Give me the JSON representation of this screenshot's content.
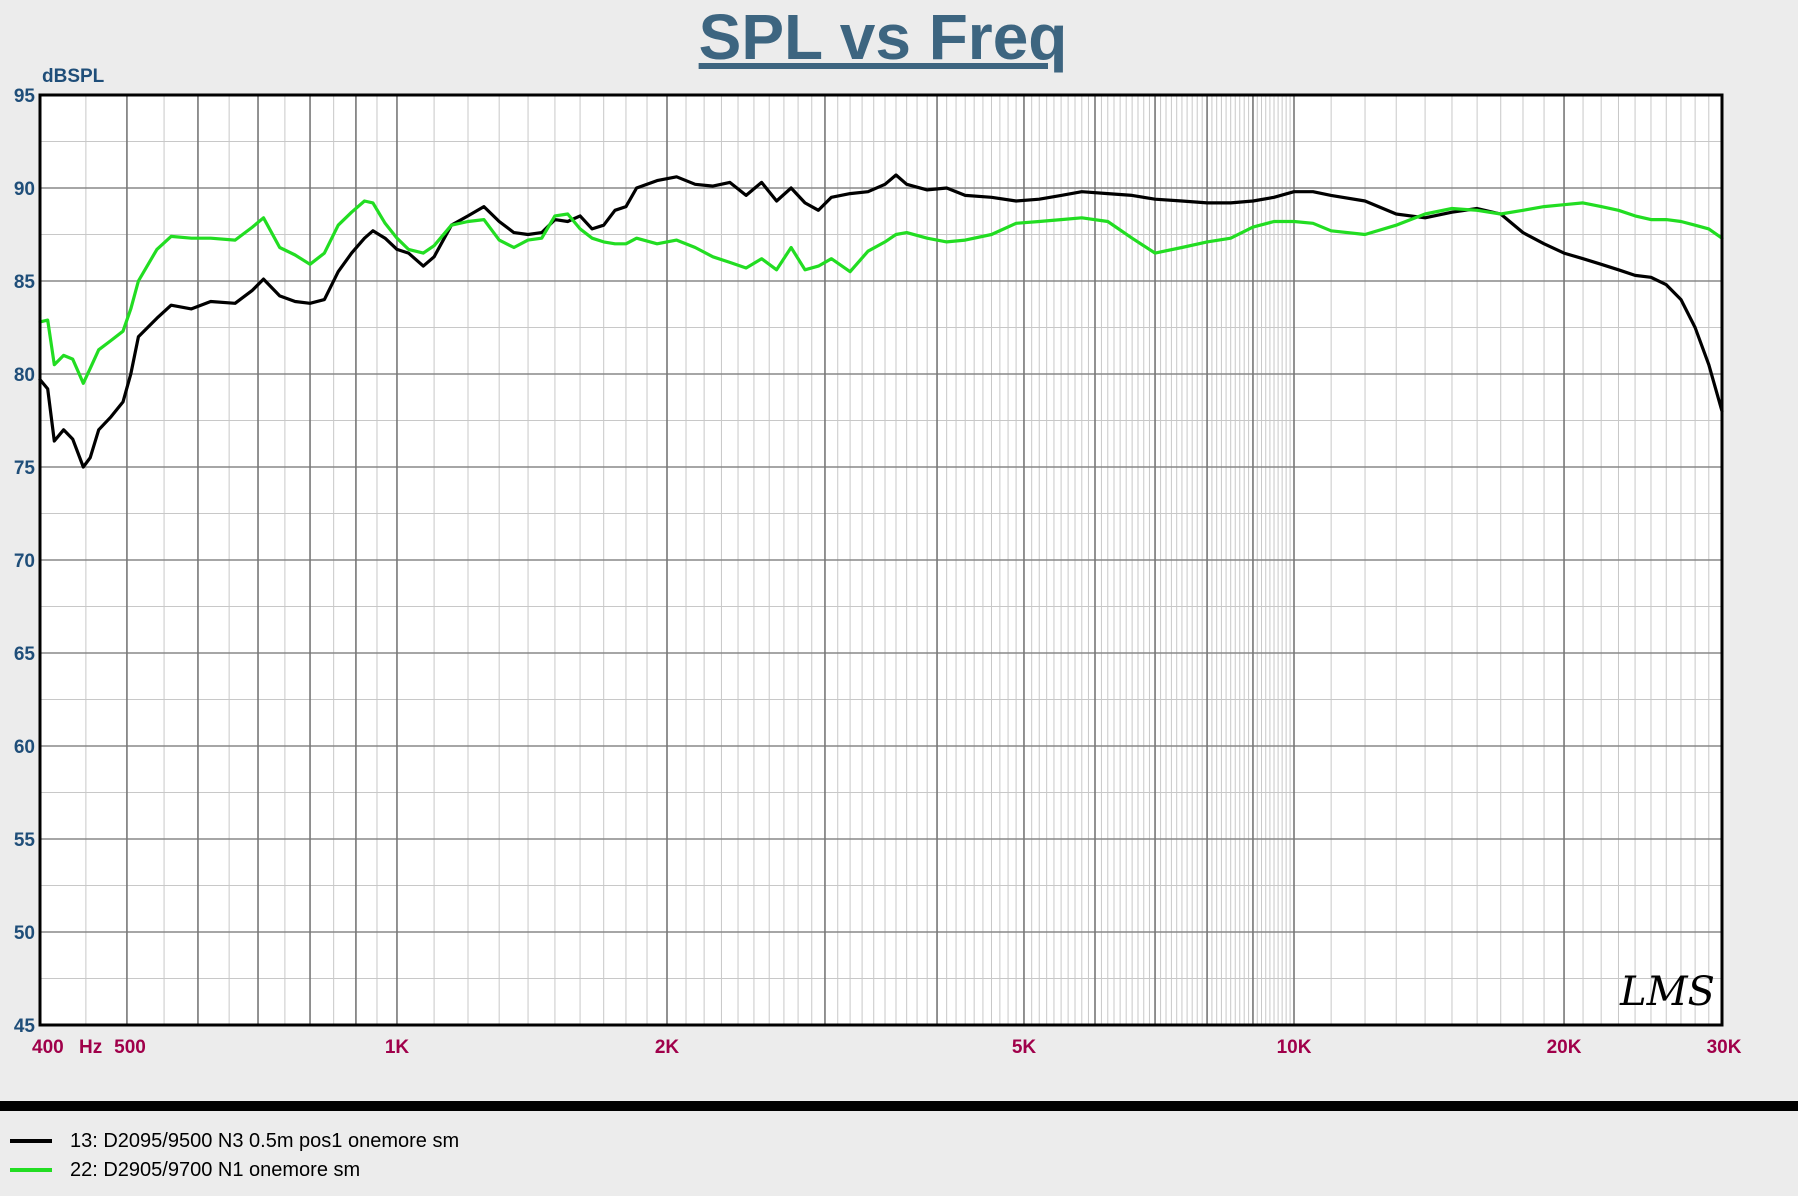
{
  "chart_data": {
    "type": "line",
    "title": "SPL vs Freq",
    "ylabel": "dBSPL",
    "xunit": "Hz",
    "xscale": "log",
    "xlim": [
      400,
      30000
    ],
    "ylim": [
      45,
      95
    ],
    "grid": true,
    "yticks": [
      95,
      90,
      85,
      80,
      75,
      70,
      65,
      60,
      55,
      50,
      45
    ],
    "xtick_labels": [
      {
        "f": 400,
        "label": "400"
      },
      {
        "f": 500,
        "label": "500"
      },
      {
        "f": 1000,
        "label": "1K"
      },
      {
        "f": 2000,
        "label": "2K"
      },
      {
        "f": 5000,
        "label": "5K"
      },
      {
        "f": 10000,
        "label": "10K"
      },
      {
        "f": 20000,
        "label": "20K"
      },
      {
        "f": 30000,
        "label": "30K"
      }
    ],
    "hz_label": "Hz",
    "watermark": "LMS",
    "legend_position": "bottom",
    "series": [
      {
        "name": "13: D2095/9500 N3 0.5m pos1 onemore sm",
        "color": "#000000",
        "points": [
          [
            400,
            79.7
          ],
          [
            408,
            79.2
          ],
          [
            415,
            76.4
          ],
          [
            425,
            77.0
          ],
          [
            435,
            76.5
          ],
          [
            447,
            75.0
          ],
          [
            455,
            75.5
          ],
          [
            465,
            77.0
          ],
          [
            480,
            77.7
          ],
          [
            495,
            78.5
          ],
          [
            505,
            80.0
          ],
          [
            515,
            82.0
          ],
          [
            540,
            83.0
          ],
          [
            560,
            83.7
          ],
          [
            590,
            83.5
          ],
          [
            620,
            83.9
          ],
          [
            660,
            83.8
          ],
          [
            690,
            84.5
          ],
          [
            710,
            85.1
          ],
          [
            740,
            84.2
          ],
          [
            770,
            83.9
          ],
          [
            800,
            83.8
          ],
          [
            830,
            84.0
          ],
          [
            860,
            85.5
          ],
          [
            890,
            86.5
          ],
          [
            920,
            87.3
          ],
          [
            940,
            87.7
          ],
          [
            970,
            87.3
          ],
          [
            1000,
            86.7
          ],
          [
            1030,
            86.5
          ],
          [
            1070,
            85.8
          ],
          [
            1100,
            86.3
          ],
          [
            1150,
            88.0
          ],
          [
            1200,
            88.5
          ],
          [
            1250,
            89.0
          ],
          [
            1300,
            88.2
          ],
          [
            1350,
            87.6
          ],
          [
            1400,
            87.5
          ],
          [
            1450,
            87.6
          ],
          [
            1500,
            88.3
          ],
          [
            1550,
            88.2
          ],
          [
            1600,
            88.5
          ],
          [
            1650,
            87.8
          ],
          [
            1700,
            88.0
          ],
          [
            1750,
            88.8
          ],
          [
            1800,
            89.0
          ],
          [
            1850,
            90.0
          ],
          [
            1950,
            90.4
          ],
          [
            2050,
            90.6
          ],
          [
            2150,
            90.2
          ],
          [
            2250,
            90.1
          ],
          [
            2350,
            90.3
          ],
          [
            2450,
            89.6
          ],
          [
            2550,
            90.3
          ],
          [
            2650,
            89.3
          ],
          [
            2750,
            90.0
          ],
          [
            2850,
            89.2
          ],
          [
            2950,
            88.8
          ],
          [
            3050,
            89.5
          ],
          [
            3200,
            89.7
          ],
          [
            3350,
            89.8
          ],
          [
            3500,
            90.2
          ],
          [
            3600,
            90.7
          ],
          [
            3700,
            90.2
          ],
          [
            3900,
            89.9
          ],
          [
            4100,
            90.0
          ],
          [
            4300,
            89.6
          ],
          [
            4600,
            89.5
          ],
          [
            4900,
            89.3
          ],
          [
            5200,
            89.4
          ],
          [
            5500,
            89.6
          ],
          [
            5800,
            89.8
          ],
          [
            6200,
            89.7
          ],
          [
            6600,
            89.6
          ],
          [
            7000,
            89.4
          ],
          [
            7500,
            89.3
          ],
          [
            8000,
            89.2
          ],
          [
            8500,
            89.2
          ],
          [
            9000,
            89.3
          ],
          [
            9500,
            89.5
          ],
          [
            10000,
            89.8
          ],
          [
            10500,
            89.8
          ],
          [
            11000,
            89.6
          ],
          [
            12000,
            89.3
          ],
          [
            13000,
            88.6
          ],
          [
            14000,
            88.4
          ],
          [
            15000,
            88.7
          ],
          [
            16000,
            88.9
          ],
          [
            17000,
            88.6
          ],
          [
            18000,
            87.6
          ],
          [
            19000,
            87.0
          ],
          [
            20000,
            86.5
          ],
          [
            21000,
            86.2
          ],
          [
            22000,
            85.9
          ],
          [
            23000,
            85.6
          ],
          [
            24000,
            85.3
          ],
          [
            25000,
            85.2
          ],
          [
            26000,
            84.8
          ],
          [
            27000,
            84.0
          ],
          [
            28000,
            82.5
          ],
          [
            29000,
            80.5
          ],
          [
            30000,
            78.0
          ]
        ]
      },
      {
        "name": "22: D2905/9700 N1 onemore sm",
        "color": "#22dd22",
        "points": [
          [
            400,
            82.8
          ],
          [
            408,
            82.9
          ],
          [
            415,
            80.5
          ],
          [
            425,
            81.0
          ],
          [
            435,
            80.8
          ],
          [
            447,
            79.5
          ],
          [
            455,
            80.3
          ],
          [
            465,
            81.3
          ],
          [
            480,
            81.8
          ],
          [
            495,
            82.3
          ],
          [
            505,
            83.5
          ],
          [
            515,
            85.0
          ],
          [
            540,
            86.7
          ],
          [
            560,
            87.4
          ],
          [
            590,
            87.3
          ],
          [
            620,
            87.3
          ],
          [
            660,
            87.2
          ],
          [
            690,
            87.9
          ],
          [
            710,
            88.4
          ],
          [
            740,
            86.8
          ],
          [
            770,
            86.4
          ],
          [
            800,
            85.9
          ],
          [
            830,
            86.5
          ],
          [
            860,
            88.0
          ],
          [
            890,
            88.7
          ],
          [
            920,
            89.3
          ],
          [
            940,
            89.2
          ],
          [
            970,
            88.1
          ],
          [
            1000,
            87.3
          ],
          [
            1030,
            86.7
          ],
          [
            1070,
            86.5
          ],
          [
            1100,
            86.9
          ],
          [
            1150,
            88.0
          ],
          [
            1200,
            88.2
          ],
          [
            1250,
            88.3
          ],
          [
            1300,
            87.2
          ],
          [
            1350,
            86.8
          ],
          [
            1400,
            87.2
          ],
          [
            1450,
            87.3
          ],
          [
            1500,
            88.5
          ],
          [
            1550,
            88.6
          ],
          [
            1600,
            87.8
          ],
          [
            1650,
            87.3
          ],
          [
            1700,
            87.1
          ],
          [
            1750,
            87.0
          ],
          [
            1800,
            87.0
          ],
          [
            1850,
            87.3
          ],
          [
            1950,
            87.0
          ],
          [
            2050,
            87.2
          ],
          [
            2150,
            86.8
          ],
          [
            2250,
            86.3
          ],
          [
            2350,
            86.0
          ],
          [
            2450,
            85.7
          ],
          [
            2550,
            86.2
          ],
          [
            2650,
            85.6
          ],
          [
            2750,
            86.8
          ],
          [
            2850,
            85.6
          ],
          [
            2950,
            85.8
          ],
          [
            3050,
            86.2
          ],
          [
            3200,
            85.5
          ],
          [
            3350,
            86.6
          ],
          [
            3500,
            87.1
          ],
          [
            3600,
            87.5
          ],
          [
            3700,
            87.6
          ],
          [
            3900,
            87.3
          ],
          [
            4100,
            87.1
          ],
          [
            4300,
            87.2
          ],
          [
            4600,
            87.5
          ],
          [
            4900,
            88.1
          ],
          [
            5200,
            88.2
          ],
          [
            5500,
            88.3
          ],
          [
            5800,
            88.4
          ],
          [
            6200,
            88.2
          ],
          [
            6600,
            87.3
          ],
          [
            7000,
            86.5
          ],
          [
            7500,
            86.8
          ],
          [
            8000,
            87.1
          ],
          [
            8500,
            87.3
          ],
          [
            9000,
            87.9
          ],
          [
            9500,
            88.2
          ],
          [
            10000,
            88.2
          ],
          [
            10500,
            88.1
          ],
          [
            11000,
            87.7
          ],
          [
            12000,
            87.5
          ],
          [
            13000,
            88.0
          ],
          [
            14000,
            88.6
          ],
          [
            15000,
            88.9
          ],
          [
            16000,
            88.8
          ],
          [
            17000,
            88.6
          ],
          [
            18000,
            88.8
          ],
          [
            19000,
            89.0
          ],
          [
            20000,
            89.1
          ],
          [
            21000,
            89.2
          ],
          [
            22000,
            89.0
          ],
          [
            23000,
            88.8
          ],
          [
            24000,
            88.5
          ],
          [
            25000,
            88.3
          ],
          [
            26000,
            88.3
          ],
          [
            27000,
            88.2
          ],
          [
            28000,
            88.0
          ],
          [
            29000,
            87.8
          ],
          [
            30000,
            87.3
          ]
        ]
      }
    ]
  }
}
